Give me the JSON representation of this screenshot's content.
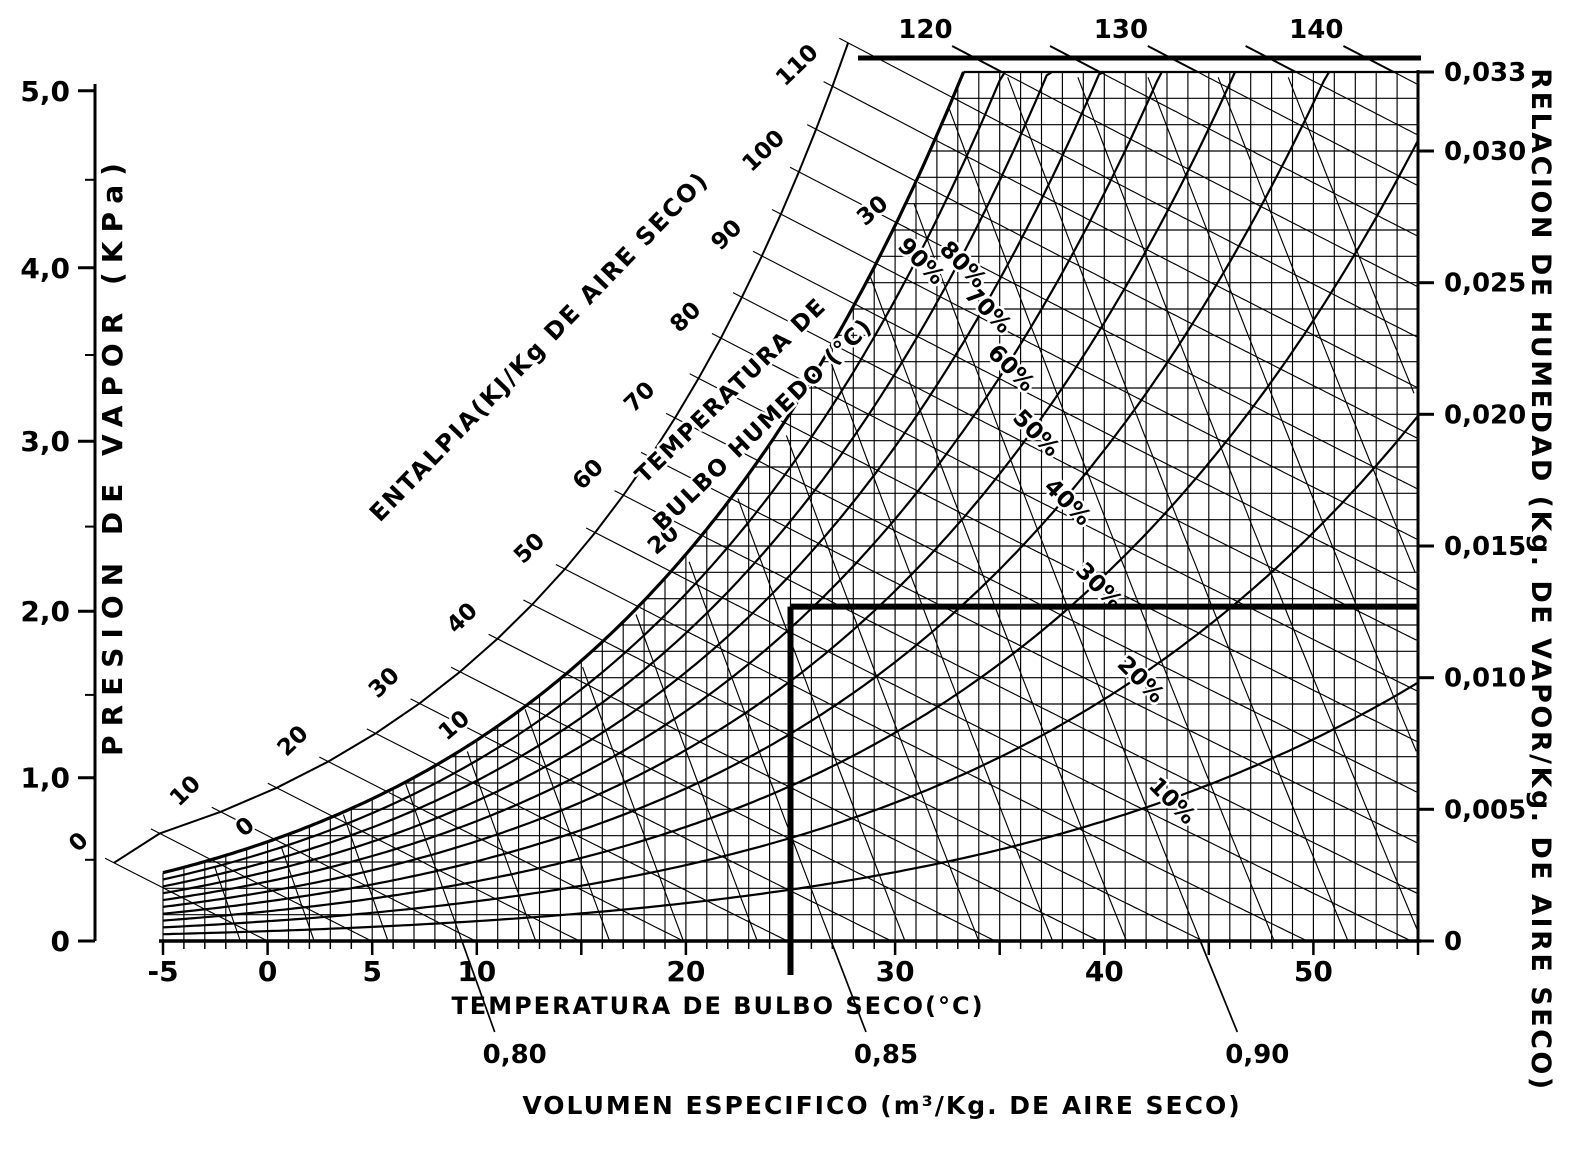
{
  "chart_data": {
    "type": "line",
    "chart_kind": "psychrometric-chart",
    "title": "",
    "axes": {
      "dry_bulb": {
        "label": "TEMPERATURA DE BULBO SECO(°C)",
        "tick_labels": [
          "-5",
          "0",
          "5",
          "10",
          "20",
          "30",
          "40",
          "50"
        ],
        "tick_values": [
          -5,
          0,
          5,
          10,
          20,
          30,
          40,
          50
        ],
        "range_c": [
          -5,
          55
        ],
        "gridline_step_c": 1
      },
      "vapor_pressure": {
        "label": "PRESION DE VAPOR (KPa)",
        "tick_labels": [
          "0",
          "1,0",
          "2,0",
          "3,0",
          "4,0",
          "5,0"
        ],
        "tick_values": [
          0,
          1,
          2,
          3,
          4,
          5
        ],
        "unit": "kPa"
      },
      "humidity_ratio": {
        "label": "RELACION DE HUMEDAD (Kg. DE VAPOR/Kg. DE AIRE SECO)",
        "tick_labels": [
          "0",
          "0,005",
          "0,010",
          "0,015",
          "0,020",
          "0,025",
          "0,030",
          "0,033"
        ],
        "tick_values": [
          0,
          0.005,
          0.01,
          0.015,
          0.02,
          0.025,
          0.03,
          0.033
        ],
        "range": [
          0,
          0.033
        ],
        "gridline_step": 0.001
      },
      "enthalpy": {
        "label": "ENTALPIA(KJ/Kg DE AIRE SECO)",
        "tick_labels": [
          "0",
          "10",
          "20",
          "30",
          "40",
          "50",
          "60",
          "70",
          "80",
          "90",
          "100",
          "110"
        ],
        "tick_values": [
          0,
          10,
          20,
          30,
          40,
          50,
          60,
          70,
          80,
          90,
          100,
          110
        ],
        "top_tick_labels": [
          "120",
          "130",
          "140"
        ],
        "top_tick_values": [
          120,
          130,
          140
        ],
        "line_step_kj_per_kg": 5
      },
      "wet_bulb": {
        "label_lines": [
          "TEMPERATURA DE",
          "BULBO HUMEDO (°C)"
        ],
        "tick_labels": [
          "0",
          "10",
          "20",
          "30"
        ],
        "tick_values": [
          0,
          10,
          20,
          30
        ]
      },
      "specific_volume": {
        "label": "VOLUMEN ESPECIFICO (m³/Kg. DE AIRE SECO)",
        "tick_labels": [
          "0,80",
          "0,85",
          "0,90"
        ],
        "tick_values": [
          0.8,
          0.85,
          0.9
        ],
        "line_step_m3_per_kg": 0.01
      }
    },
    "rh_curves": {
      "values": [
        10,
        20,
        30,
        40,
        50,
        60,
        70,
        80,
        90
      ],
      "labels": [
        "10%",
        "20%",
        "30%",
        "40%",
        "50%",
        "60%",
        "70%",
        "80%",
        "90%"
      ]
    },
    "saturation_curve_points": {
      "dry_bulb_c": [
        -5,
        0,
        5,
        10,
        15,
        20,
        25,
        30,
        33.4
      ],
      "humidity_ratio": [
        0.0026,
        0.0038,
        0.0054,
        0.0076,
        0.0107,
        0.0147,
        0.0201,
        0.0272,
        0.033
      ]
    },
    "highlight_lines": {
      "dry_bulb_c": 25,
      "vapor_pressure_kPa": 2.0,
      "humidity_ratio": 0.0127
    }
  }
}
